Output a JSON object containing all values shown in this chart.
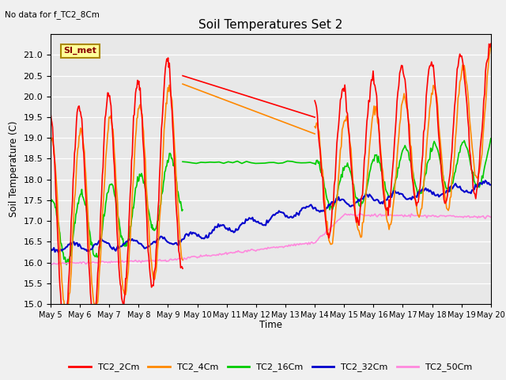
{
  "title": "Soil Temperatures Set 2",
  "no_data_label": "No data for f_TC2_8Cm",
  "si_met_label": "SI_met",
  "ylabel": "Soil Temperature (C)",
  "xlabel": "Time",
  "ylim": [
    15.0,
    21.5
  ],
  "yticks": [
    15.0,
    15.5,
    16.0,
    16.5,
    17.0,
    17.5,
    18.0,
    18.5,
    19.0,
    19.5,
    20.0,
    20.5,
    21.0
  ],
  "bg_color": "#e8e8e8",
  "fig_color": "#f0f0f0",
  "line_colors": {
    "TC2_2Cm": "#ff0000",
    "TC2_4Cm": "#ff8800",
    "TC2_16Cm": "#00cc00",
    "TC2_32Cm": "#0000cc",
    "TC2_50Cm": "#ff88dd"
  },
  "x_tick_labels": [
    "May 5",
    "May 6",
    "May 7",
    "May 8",
    "May 9",
    "May 10",
    "May 11",
    "May 12",
    "May 13",
    "May 14",
    "May 15",
    "May 16",
    "May 17",
    "May 18",
    "May 19",
    "May 20"
  ]
}
